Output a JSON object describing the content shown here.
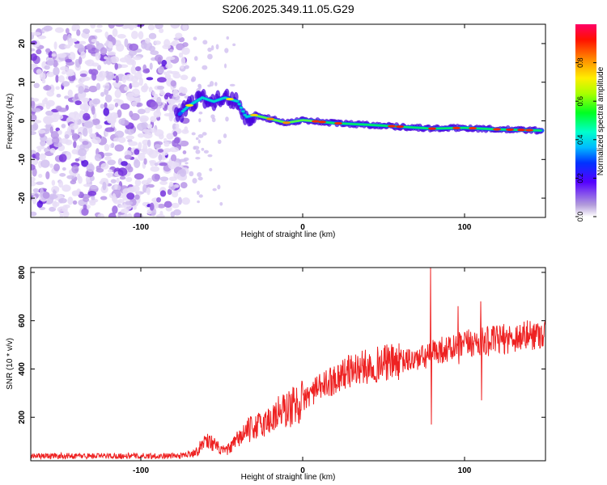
{
  "figure": {
    "title": "S206.2025.349.11.05.G29"
  },
  "chart_data": [
    {
      "type": "heatmap",
      "xlabel": "Height of straight line (km)",
      "ylabel": "Frequency (Hz)",
      "xlim": [
        -168,
        150
      ],
      "ylim": [
        -25,
        25
      ],
      "xticks": [
        -100,
        0,
        100
      ],
      "yticks": [
        -20,
        -10,
        0,
        10,
        20
      ],
      "colorbar": {
        "label": "Normalized spectral amplitude",
        "range": [
          0,
          1
        ],
        "ticks": [
          0.0,
          0.2,
          0.4,
          0.6,
          0.8
        ]
      },
      "ridge": {
        "description": "dominant frequency track",
        "x": [
          -78,
          -70,
          -62,
          -55,
          -48,
          -40,
          -35,
          -30,
          -20,
          -10,
          0,
          20,
          40,
          60,
          80,
          100,
          120,
          148
        ],
        "y": [
          1,
          4,
          6,
          5,
          6,
          5,
          1,
          1.5,
          0.5,
          -0.5,
          0.2,
          -0.6,
          -1,
          -1.5,
          -2,
          -1.8,
          -2.2,
          -2.5
        ]
      }
    },
    {
      "type": "line",
      "xlabel": "Height of straight line (km)",
      "ylabel": "SNR (10 * v/v)",
      "xlim": [
        -168,
        150
      ],
      "ylim": [
        20,
        820
      ],
      "xticks": [
        -100,
        0,
        100
      ],
      "yticks": [
        200,
        400,
        600,
        800
      ],
      "series": [
        {
          "name": "SNR",
          "color": "#ee2222",
          "x": [
            -168,
            -140,
            -110,
            -90,
            -75,
            -65,
            -60,
            -55,
            -50,
            -45,
            -40,
            -35,
            -30,
            -25,
            -20,
            -15,
            -10,
            -5,
            0,
            5,
            10,
            15,
            20,
            25,
            30,
            40,
            50,
            60,
            70,
            76,
            79,
            80,
            85,
            90,
            95,
            100,
            105,
            110,
            120,
            130,
            140,
            150
          ],
          "y": [
            40,
            40,
            40,
            40,
            40,
            60,
            110,
            90,
            60,
            70,
            110,
            140,
            160,
            170,
            190,
            220,
            230,
            250,
            270,
            300,
            320,
            340,
            360,
            380,
            395,
            410,
            425,
            430,
            440,
            450,
            460,
            470,
            480,
            480,
            490,
            500,
            510,
            510,
            520,
            530,
            540,
            550
          ],
          "spikes": [
            {
              "x": 79,
              "y": 820
            },
            {
              "x": 79.5,
              "y": 170
            },
            {
              "x": 96,
              "y": 660
            },
            {
              "x": 96.5,
              "y": 420
            },
            {
              "x": 110,
              "y": 680
            },
            {
              "x": 110.5,
              "y": 270
            }
          ]
        }
      ]
    }
  ]
}
